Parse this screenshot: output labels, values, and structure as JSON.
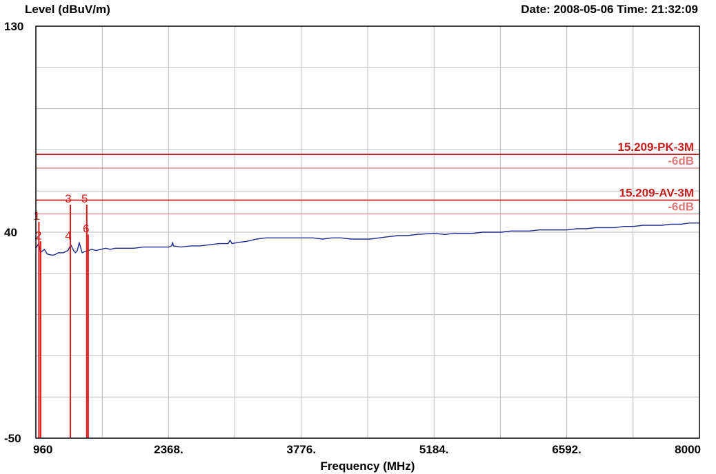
{
  "header": {
    "y_axis_label": "Level (dBuV/m)",
    "timestamp": "Date: 2008-05-06  Time: 21:32:09"
  },
  "colors": {
    "trace": "#1c2a8c",
    "limit": "#c42020",
    "limit_offset": "#e07a7a",
    "grid": "#bdbdbd",
    "marker": "#e01818"
  },
  "chart_data": {
    "type": "line",
    "xlabel": "Frequency (MHz)",
    "ylabel": "Level (dBuV/m)",
    "xlim": [
      960,
      8000
    ],
    "ylim": [
      -50,
      130
    ],
    "x_grid_count": 10,
    "y_grid_count": 10,
    "grid": true,
    "x_tick_labels": [
      {
        "value": 960,
        "label": "960"
      },
      {
        "value": 2368,
        "label": "2368."
      },
      {
        "value": 3776,
        "label": "3776."
      },
      {
        "value": 5184,
        "label": "5184."
      },
      {
        "value": 6592,
        "label": "6592."
      },
      {
        "value": 8000,
        "label": "8000"
      }
    ],
    "y_tick_labels": [
      {
        "value": 130,
        "label": "130"
      },
      {
        "value": 40,
        "label": "40"
      },
      {
        "value": -50,
        "label": "-50"
      }
    ],
    "limit_lines": [
      {
        "label": "15.209-PK-3M",
        "value": 74,
        "kind": "limit"
      },
      {
        "label": "-6dB",
        "value": 68,
        "kind": "offset"
      },
      {
        "label": "15.209-AV-3M",
        "value": 54,
        "kind": "limit"
      },
      {
        "label": "-6dB",
        "value": 48,
        "kind": "offset"
      }
    ],
    "series": [
      {
        "x": [
          960,
          990,
          1010,
          1050,
          1080,
          1120,
          1150,
          1200,
          1250,
          1300,
          1330,
          1360,
          1380,
          1400,
          1420,
          1450,
          1480,
          1500,
          1520,
          1550,
          1600,
          1650,
          1700,
          1750,
          1800,
          1900,
          2000,
          2100,
          2200,
          2300,
          2368,
          2400,
          2410,
          2420,
          2500,
          2600,
          2700,
          2800,
          2900,
          3000,
          3020,
          3040,
          3100,
          3200,
          3300,
          3400,
          3500,
          3600,
          3776,
          3900,
          4000,
          4100,
          4200,
          4300,
          4400,
          4500,
          4600,
          4700,
          4800,
          4900,
          5000,
          5184,
          5300,
          5400,
          5500,
          5600,
          5700,
          5800,
          5900,
          6000,
          6100,
          6200,
          6300,
          6400,
          6500,
          6592,
          6700,
          6800,
          6900,
          7000,
          7100,
          7200,
          7300,
          7400,
          7500,
          7600,
          7700,
          7800,
          7900,
          8000
        ],
        "y": [
          33.0,
          35.0,
          31.0,
          32.5,
          30.5,
          30.0,
          30.0,
          31.0,
          31.0,
          32.0,
          34.5,
          32.0,
          31.0,
          32.0,
          35.5,
          31.0,
          31.5,
          31.5,
          32.0,
          32.5,
          32.0,
          32.5,
          33.0,
          32.5,
          33.0,
          33.0,
          33.0,
          33.5,
          33.5,
          33.5,
          33.5,
          34.0,
          35.5,
          34.0,
          33.5,
          34.0,
          34.0,
          34.5,
          35.0,
          35.0,
          36.5,
          35.0,
          35.5,
          36.0,
          37.0,
          37.5,
          37.5,
          37.5,
          37.5,
          37.5,
          37.0,
          37.5,
          37.5,
          37.0,
          37.0,
          37.0,
          37.5,
          38.0,
          38.5,
          38.5,
          39.0,
          39.5,
          39.0,
          39.5,
          39.5,
          39.5,
          40.0,
          40.0,
          40.0,
          40.5,
          40.5,
          40.5,
          41.0,
          41.0,
          41.0,
          41.0,
          41.5,
          41.5,
          42.0,
          42.0,
          42.0,
          42.5,
          42.5,
          43.0,
          43.0,
          43.0,
          43.5,
          43.5,
          44.0,
          44.0
        ]
      }
    ],
    "markers": [
      {
        "label": "1",
        "x": 992,
        "top": 44.5
      },
      {
        "label": "2",
        "x": 1010,
        "top": 36
      },
      {
        "label": "3",
        "x": 1326,
        "top": 52
      },
      {
        "label": "4",
        "x": 1326,
        "top": 36
      },
      {
        "label": "5",
        "x": 1500,
        "top": 52
      },
      {
        "label": "6",
        "x": 1515,
        "top": 39
      }
    ]
  }
}
